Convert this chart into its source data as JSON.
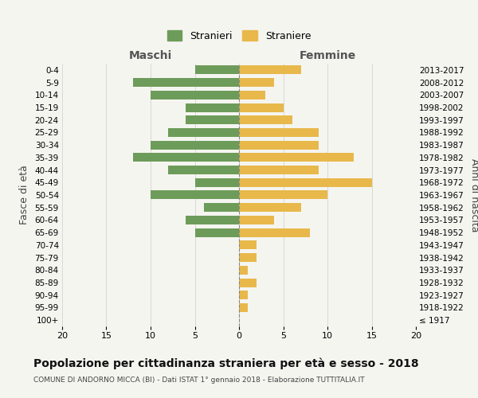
{
  "age_groups": [
    "100+",
    "95-99",
    "90-94",
    "85-89",
    "80-84",
    "75-79",
    "70-74",
    "65-69",
    "60-64",
    "55-59",
    "50-54",
    "45-49",
    "40-44",
    "35-39",
    "30-34",
    "25-29",
    "20-24",
    "15-19",
    "10-14",
    "5-9",
    "0-4"
  ],
  "birth_years": [
    "≤ 1917",
    "1918-1922",
    "1923-1927",
    "1928-1932",
    "1933-1937",
    "1938-1942",
    "1943-1947",
    "1948-1952",
    "1953-1957",
    "1958-1962",
    "1963-1967",
    "1968-1972",
    "1973-1977",
    "1978-1982",
    "1983-1987",
    "1988-1992",
    "1993-1997",
    "1998-2002",
    "2003-2007",
    "2008-2012",
    "2013-2017"
  ],
  "maschi": [
    0,
    0,
    0,
    0,
    0,
    0,
    0,
    5,
    6,
    4,
    10,
    5,
    8,
    12,
    10,
    8,
    6,
    6,
    10,
    12,
    5
  ],
  "femmine": [
    0,
    1,
    1,
    2,
    1,
    2,
    2,
    8,
    4,
    7,
    10,
    15,
    9,
    13,
    9,
    9,
    6,
    5,
    3,
    4,
    7
  ],
  "color_maschi": "#6d9c5a",
  "color_femmine": "#e8b84b",
  "background_color": "#f5f5f0",
  "grid_color": "#cccccc",
  "title": "Popolazione per cittadinanza straniera per età e sesso - 2018",
  "subtitle": "COMUNE DI ANDORNO MICCA (BI) - Dati ISTAT 1° gennaio 2018 - Elaborazione TUTTITALIA.IT",
  "xlabel_left": "Maschi",
  "xlabel_right": "Femmine",
  "ylabel_left": "Fasce di età",
  "ylabel_right": "Anni di nascita",
  "legend_maschi": "Stranieri",
  "legend_femmine": "Straniere",
  "xlim": 20,
  "dpi": 100,
  "figsize": [
    6.0,
    5.0
  ]
}
